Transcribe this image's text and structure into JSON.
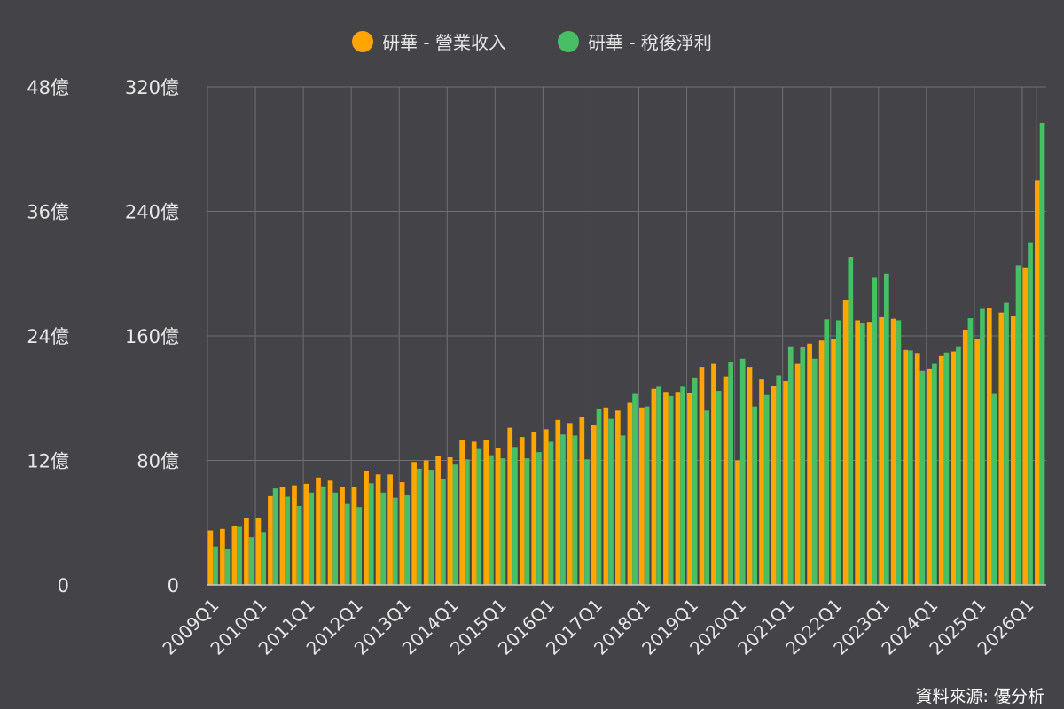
{
  "legend": {
    "revenue_label": "研華 - 營業收入",
    "profit_label": "研華 - 稅後淨利"
  },
  "source": "資料來源: 優分析",
  "colors": {
    "background": "#444348",
    "grid": "#707070",
    "revenue": "#FFA500",
    "profit": "#48BF64",
    "text": "#e6e6e6"
  },
  "chart_data": {
    "type": "bar",
    "categories": [
      "2009Q1",
      "2009Q2",
      "2009Q3",
      "2009Q4",
      "2010Q1",
      "2010Q2",
      "2010Q3",
      "2010Q4",
      "2011Q1",
      "2011Q2",
      "2011Q3",
      "2011Q4",
      "2012Q1",
      "2012Q2",
      "2012Q3",
      "2012Q4",
      "2013Q1",
      "2013Q2",
      "2013Q3",
      "2013Q4",
      "2014Q1",
      "2014Q2",
      "2014Q3",
      "2014Q4",
      "2015Q1",
      "2015Q2",
      "2015Q3",
      "2015Q4",
      "2016Q1",
      "2016Q2",
      "2016Q3",
      "2016Q4",
      "2017Q1",
      "2017Q2",
      "2017Q3",
      "2017Q4",
      "2018Q1",
      "2018Q2",
      "2018Q3",
      "2018Q4",
      "2019Q1",
      "2019Q2",
      "2019Q3",
      "2019Q4",
      "2020Q1",
      "2020Q2",
      "2020Q3",
      "2020Q4",
      "2021Q1",
      "2021Q2",
      "2021Q3",
      "2021Q4",
      "2022Q1",
      "2022Q2",
      "2022Q3",
      "2022Q4",
      "2023Q1",
      "2023Q2",
      "2023Q3",
      "2023Q4",
      "2024Q1",
      "2024Q2",
      "2024Q3",
      "2024Q4",
      "2025Q1",
      "2025Q2",
      "2025Q3",
      "2025Q4",
      "2026Q1",
      "2026Q2"
    ],
    "x_tick_labels": [
      "2009Q1",
      "2010Q1",
      "2011Q1",
      "2012Q1",
      "2013Q1",
      "2014Q1",
      "2015Q1",
      "2016Q1",
      "2017Q1",
      "2018Q1",
      "2019Q1",
      "2020Q1",
      "2021Q1",
      "2022Q1",
      "2023Q1",
      "2024Q1",
      "2025Q1",
      "2026Q1"
    ],
    "series": [
      {
        "name": "研華 - 營業收入",
        "axis": "right",
        "unit": "億",
        "values": [
          35,
          36,
          38,
          43,
          43,
          57,
          63,
          64,
          65,
          69,
          67,
          63,
          63,
          73,
          71,
          71,
          66,
          79,
          80,
          83,
          82,
          93,
          92,
          93,
          88,
          101,
          95,
          98,
          100,
          106,
          104,
          108,
          103,
          114,
          112,
          117,
          114,
          126,
          124,
          124,
          123,
          140,
          142,
          134,
          80,
          140,
          132,
          128,
          131,
          142,
          155,
          157,
          158,
          183,
          170,
          169,
          172,
          171,
          151,
          149,
          139,
          147,
          150,
          164,
          158,
          178,
          175,
          173,
          204,
          260
        ]
      },
      {
        "name": "研華 - 稅後淨利",
        "axis": "left",
        "unit": "億",
        "values": [
          3.7,
          3.5,
          5.6,
          4.6,
          5.1,
          9.3,
          8.5,
          7.6,
          8.9,
          9.5,
          8.9,
          7.8,
          7.5,
          9.8,
          8.9,
          8.4,
          8.7,
          11.2,
          11.1,
          10.2,
          11.6,
          12.1,
          13.1,
          12.5,
          12.2,
          13.3,
          12.2,
          12.8,
          13.8,
          14.5,
          14.4,
          12.1,
          17.0,
          16.0,
          14.4,
          18.4,
          17.2,
          19.1,
          18.2,
          19.1,
          20.0,
          16.8,
          18.7,
          21.5,
          21.8,
          17.2,
          18.3,
          20.2,
          23.0,
          22.9,
          21.8,
          25.6,
          25.5,
          31.6,
          25.2,
          29.6,
          30.0,
          25.5,
          22.6,
          20.6,
          21.3,
          22.4,
          23.0,
          25.7,
          26.6,
          18.4,
          27.2,
          30.8,
          33.0,
          44.5
        ]
      }
    ],
    "left_axis": {
      "label_unit": "億",
      "ylim": [
        0,
        48
      ],
      "ticks": [
        0,
        12,
        24,
        36,
        48
      ],
      "tick_labels": [
        "0",
        "12億",
        "24億",
        "36億",
        "48億"
      ]
    },
    "right_axis": {
      "label_unit": "億",
      "ylim": [
        0,
        320
      ],
      "ticks": [
        0,
        80,
        160,
        240,
        320
      ],
      "tick_labels": [
        "0",
        "80億",
        "160億",
        "240億",
        "320億"
      ]
    },
    "title": "",
    "xlabel": "",
    "grid": true,
    "legend_position": "top-center"
  }
}
